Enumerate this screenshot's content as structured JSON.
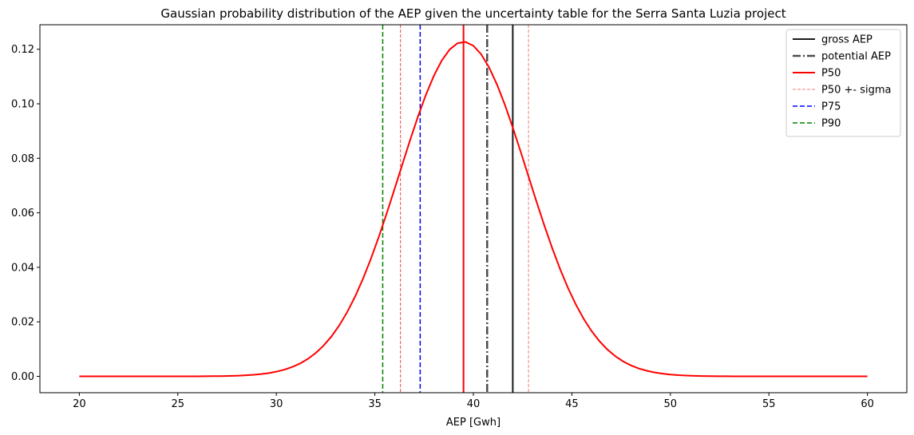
{
  "chart_data": {
    "type": "line",
    "title": "Gaussian probability distribution of the AEP given the uncertainty table for the Serra Santa Luzia project",
    "xlabel": "AEP [Gwh]",
    "ylabel": "",
    "xlim": [
      18,
      62
    ],
    "ylim": [
      -0.006,
      0.129
    ],
    "xticks": [
      20,
      25,
      30,
      35,
      40,
      45,
      50,
      55,
      60
    ],
    "xtick_labels": [
      "20",
      "25",
      "30",
      "35",
      "40",
      "45",
      "50",
      "55",
      "60"
    ],
    "yticks": [
      0.0,
      0.02,
      0.04,
      0.06,
      0.08,
      0.1,
      0.12
    ],
    "ytick_labels": [
      "0.00",
      "0.02",
      "0.04",
      "0.06",
      "0.08",
      "0.10",
      "0.12"
    ],
    "grid": false,
    "legend_position": "top-right",
    "distribution": {
      "name": "gaussian pdf",
      "mean": 39.5,
      "sigma": 3.25,
      "x_start": 20,
      "x_end": 60,
      "n_points": 101,
      "color": "#ff0000"
    },
    "reference_lines": [
      {
        "key": "gross",
        "label": "gross AEP",
        "x": 42.0,
        "color": "#1a1a1a",
        "style": "solid",
        "in_legend": true
      },
      {
        "key": "potential",
        "label": "potential AEP",
        "x": 40.7,
        "color": "#4d4d4d",
        "style": "dashdot",
        "in_legend": true
      },
      {
        "key": "p50",
        "label": "P50",
        "x": 39.5,
        "color": "#ff0000",
        "style": "solid",
        "in_legend": true
      },
      {
        "key": "p50_minus",
        "label": "P50 +- sigma",
        "x": 36.3,
        "color": "#e8474a",
        "style": "dashed-thin",
        "in_legend": false
      },
      {
        "key": "p50_plus",
        "label": "P50 +- sigma",
        "x": 42.8,
        "color": "#f47b7b",
        "style": "dashed-thin",
        "in_legend": true
      },
      {
        "key": "p75",
        "label": "P75",
        "x": 37.3,
        "color": "#0000ff",
        "style": "dashed",
        "in_legend": true
      },
      {
        "key": "p90",
        "label": "P90",
        "x": 35.4,
        "color": "#008000",
        "style": "dashed",
        "in_legend": true
      }
    ]
  }
}
